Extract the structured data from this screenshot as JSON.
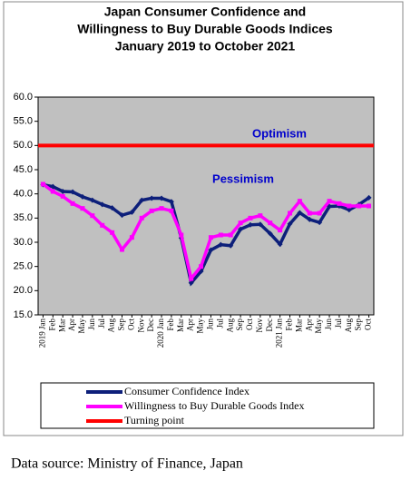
{
  "chart_data": {
    "type": "line",
    "title": [
      "Japan Consumer Confidence and",
      "Willingness to Buy Durable Goods Indices",
      "January 2019 to October 2021"
    ],
    "categories": [
      "2019 Jan",
      "Feb",
      "Mar",
      "Apr",
      "May",
      "Jun",
      "Jul",
      "Aug",
      "Sep",
      "Oct",
      "Nov",
      "Dec",
      "2020 Jan",
      "Feb",
      "Mar",
      "Apr",
      "May",
      "Jun",
      "Jul",
      "Aug",
      "Sep",
      "Oct",
      "Nov",
      "Dec",
      "2021 Jan",
      "Feb",
      "Mar",
      "Apr",
      "May",
      "Jun",
      "Jul",
      "Aug",
      "Sep",
      "Oct"
    ],
    "series": [
      {
        "name": "Consumer Confidence Index",
        "color": "#0d1f7a",
        "values": [
          41.9,
          41.5,
          40.5,
          40.4,
          39.4,
          38.7,
          37.8,
          37.1,
          35.6,
          36.2,
          38.7,
          39.1,
          39.1,
          38.4,
          30.9,
          21.6,
          24.0,
          28.4,
          29.5,
          29.3,
          32.7,
          33.6,
          33.7,
          31.8,
          29.6,
          33.8,
          36.1,
          34.7,
          34.1,
          37.4,
          37.5,
          36.7,
          37.8,
          39.2
        ]
      },
      {
        "name": "Willingness to Buy Durable Goods Index",
        "color": "#ff00ff",
        "values": [
          42.0,
          40.5,
          39.5,
          38.0,
          37.0,
          35.5,
          33.5,
          32.0,
          28.5,
          31.0,
          35.0,
          36.5,
          37.0,
          36.5,
          31.5,
          22.5,
          25.0,
          31.0,
          31.5,
          31.5,
          34.0,
          35.0,
          35.5,
          34.0,
          32.5,
          36.0,
          38.5,
          36.0,
          36.0,
          38.5,
          38.0,
          37.5,
          37.5,
          37.5
        ]
      }
    ],
    "reference_line": {
      "name": "Turning point",
      "value": 50,
      "color": "#ff0000"
    },
    "annotations": [
      "Optimism",
      "Pessimism"
    ],
    "ylim": [
      15,
      60
    ],
    "yticks": [
      {
        "value": 15,
        "label": "15.0"
      },
      {
        "value": 20,
        "label": "20.0"
      },
      {
        "value": 25,
        "label": "25.0"
      },
      {
        "value": 30,
        "label": "30.0"
      },
      {
        "value": 35,
        "label": "35.0"
      },
      {
        "value": 40,
        "label": "40.0"
      },
      {
        "value": 45,
        "label": "45.0"
      },
      {
        "value": 50,
        "label": "50.0"
      },
      {
        "value": 55,
        "label": "55.0"
      },
      {
        "value": 60,
        "label": "60.0"
      }
    ],
    "plot_background": "#c0c0c0",
    "grid": false,
    "source": "Data source: Ministry of Finance, Japan"
  }
}
